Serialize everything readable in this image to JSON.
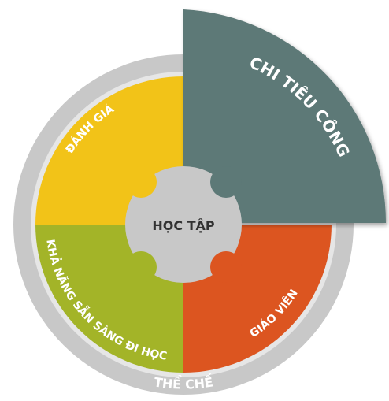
{
  "center": {
    "label": "HỌC TẬP"
  },
  "segments": [
    {
      "label": "CHI TIÊU CÔNG"
    },
    {
      "label": "ĐÁNH GIÁ"
    },
    {
      "label": "KHẢ NĂNG SẴN SÀNG ĐI HỌC"
    },
    {
      "label": "GIÁO VIÊN"
    }
  ],
  "ring": {
    "label": "THỂ CHẾ"
  }
}
